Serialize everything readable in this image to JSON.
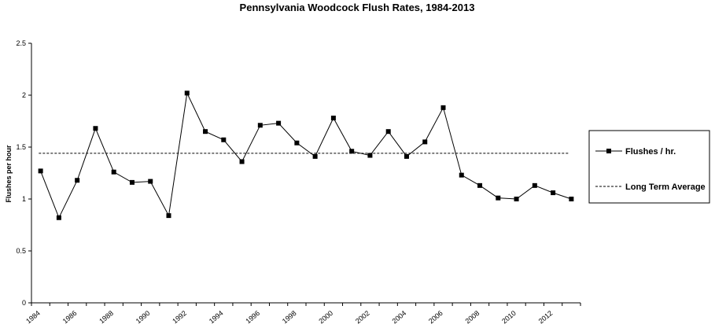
{
  "chart_data": {
    "type": "line",
    "title": "Pennsylvania Woodcock Flush Rates, 1984-2013",
    "ylabel": "Flushes per hour",
    "xlabel": "",
    "ylim": [
      0,
      2.5
    ],
    "yticks": [
      "0",
      "0.5",
      "1",
      "1.5",
      "2",
      "2.5"
    ],
    "xtick_labels": [
      "1984",
      "1986",
      "1988",
      "1990",
      "1992",
      "1994",
      "1996",
      "1998",
      "2000",
      "2002",
      "2004",
      "2006",
      "2008",
      "2010",
      "2012"
    ],
    "x": [
      1984,
      1985,
      1986,
      1987,
      1988,
      1989,
      1990,
      1991,
      1992,
      1993,
      1994,
      1995,
      1996,
      1997,
      1998,
      1999,
      2000,
      2001,
      2002,
      2003,
      2004,
      2005,
      2006,
      2007,
      2008,
      2009,
      2010,
      2011,
      2012,
      2013
    ],
    "series": [
      {
        "name": "Flushes / hr.",
        "style": "solid-square-markers",
        "values": [
          1.27,
          0.82,
          1.18,
          1.68,
          1.26,
          1.16,
          1.17,
          0.84,
          2.02,
          1.65,
          1.57,
          1.36,
          1.71,
          1.73,
          1.54,
          1.41,
          1.78,
          1.46,
          1.42,
          1.65,
          1.41,
          1.55,
          1.88,
          1.23,
          1.13,
          1.01,
          1.0,
          1.13,
          1.06,
          1.0
        ]
      },
      {
        "name": "Long Term Average",
        "style": "dashed",
        "value": 1.44
      }
    ],
    "grid": false,
    "legend_position": "right",
    "colors": {
      "line": "#000000",
      "background": "#ffffff"
    }
  }
}
